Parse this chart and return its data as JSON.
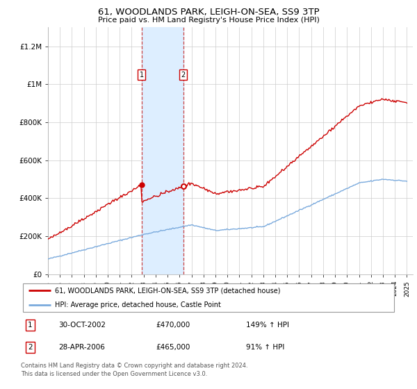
{
  "title": "61, WOODLANDS PARK, LEIGH-ON-SEA, SS9 3TP",
  "subtitle": "Price paid vs. HM Land Registry's House Price Index (HPI)",
  "legend_line1": "61, WOODLANDS PARK, LEIGH-ON-SEA, SS9 3TP (detached house)",
  "legend_line2": "HPI: Average price, detached house, Castle Point",
  "footnote": "Contains HM Land Registry data © Crown copyright and database right 2024.\nThis data is licensed under the Open Government Licence v3.0.",
  "sale1_label": "1",
  "sale1_date": "30-OCT-2002",
  "sale1_price": "£470,000",
  "sale1_hpi": "149% ↑ HPI",
  "sale2_label": "2",
  "sale2_date": "28-APR-2006",
  "sale2_price": "£465,000",
  "sale2_hpi": "91% ↑ HPI",
  "price_line_color": "#cc0000",
  "hpi_line_color": "#7aaadd",
  "highlight_color": "#ddeeff",
  "sale1_year": 2002.83,
  "sale2_year": 2006.32,
  "sale1_price_val": 470000,
  "sale2_price_val": 465000,
  "ylim_max": 1300000,
  "ylabel_ticks": [
    0,
    200000,
    400000,
    600000,
    800000,
    1000000,
    1200000
  ],
  "ylabel_labels": [
    "£0",
    "£200K",
    "£400K",
    "£600K",
    "£800K",
    "£1M",
    "£1.2M"
  ],
  "xmin": 1995,
  "xmax": 2025
}
